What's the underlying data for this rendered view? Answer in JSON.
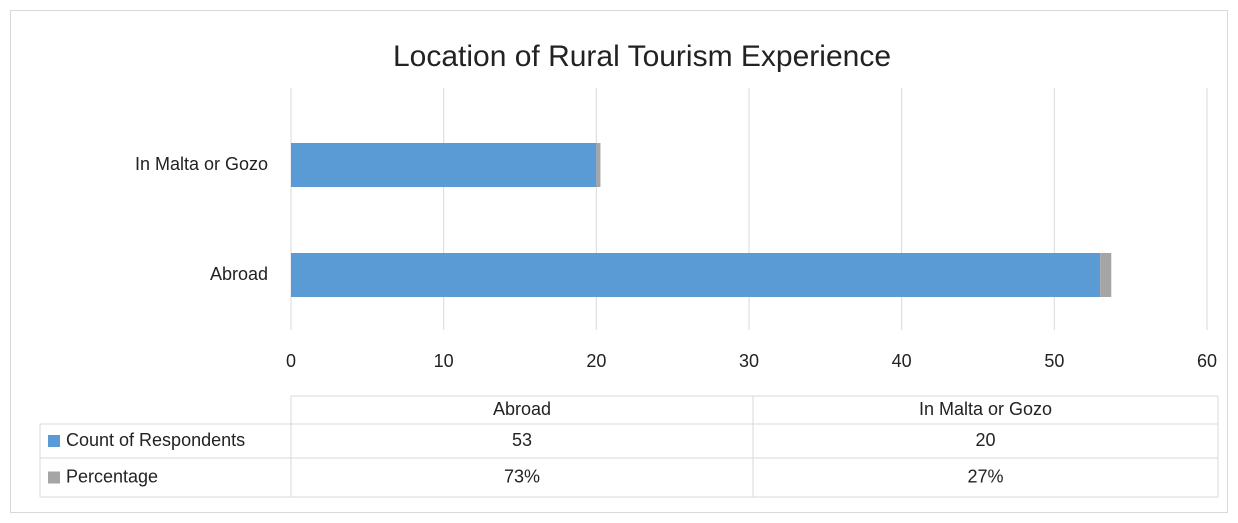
{
  "chart_data": {
    "type": "bar",
    "orientation": "horizontal",
    "stacked": true,
    "title": "Location of Rural Tourism Experience",
    "categories": [
      "Abroad",
      "In Malta or Gozo"
    ],
    "series": [
      {
        "name": "Count of Respondents",
        "color": "#5b9bd5",
        "values": [
          53,
          20
        ]
      },
      {
        "name": "Percentage",
        "color": "#a5a5a5",
        "values": [
          0.73,
          0.27
        ],
        "value_labels": [
          "73%",
          "27%"
        ]
      }
    ],
    "xlim": [
      0,
      60
    ],
    "xticks": [
      0,
      10,
      20,
      30,
      40,
      50,
      60
    ],
    "grid": true,
    "data_table": true
  }
}
